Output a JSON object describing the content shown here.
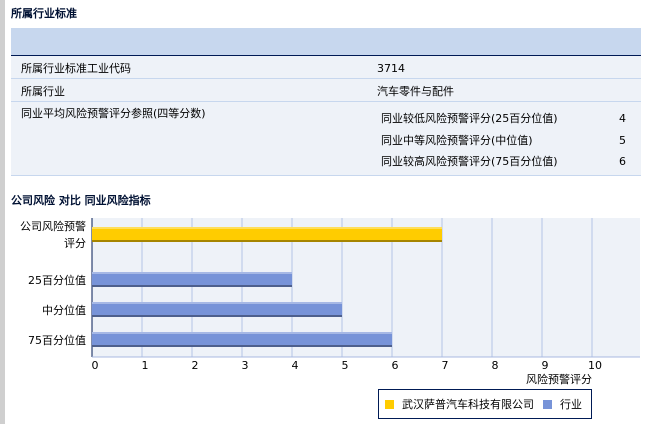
{
  "section1": {
    "title": "所属行业标准",
    "rows": [
      {
        "label": "所属行业标准工业代码",
        "value": "3714"
      },
      {
        "label": "所属行业",
        "value": "汽车零件与配件"
      }
    ],
    "avg": {
      "label": "同业平均风险预警评分参照(四等分数)",
      "items": [
        {
          "label": "同业较低风险预警评分(25百分位值)",
          "value": "4"
        },
        {
          "label": "同业中等风险预警评分(中位值)",
          "value": "5"
        },
        {
          "label": "同业较高风险预警评分(75百分位值)",
          "value": "6"
        }
      ]
    }
  },
  "section2": {
    "title": "公司风险 对比 同业风险指标"
  },
  "chart_data": {
    "type": "bar",
    "orientation": "horizontal",
    "categories": [
      "公司风险预警评分",
      "25百分位值",
      "中分位值",
      "75百分位值"
    ],
    "category_lines": [
      [
        "公司风险预警",
        "评分"
      ],
      [
        "25百分位值"
      ],
      [
        "中分位值"
      ],
      [
        "75百分位值"
      ]
    ],
    "series": [
      {
        "name": "武汉萨普汽车科技有限公司",
        "color": "#ffcc00",
        "values": [
          7,
          null,
          null,
          null
        ]
      },
      {
        "name": "行业",
        "color": "#7793d8",
        "values": [
          null,
          4,
          5,
          6
        ]
      }
    ],
    "xlabel": "风险预警评分",
    "xlim": [
      0,
      11
    ],
    "xticks": [
      0,
      1,
      2,
      3,
      4,
      5,
      6,
      7,
      8,
      9,
      10
    ],
    "grid": true,
    "legend": "bottom-right"
  }
}
